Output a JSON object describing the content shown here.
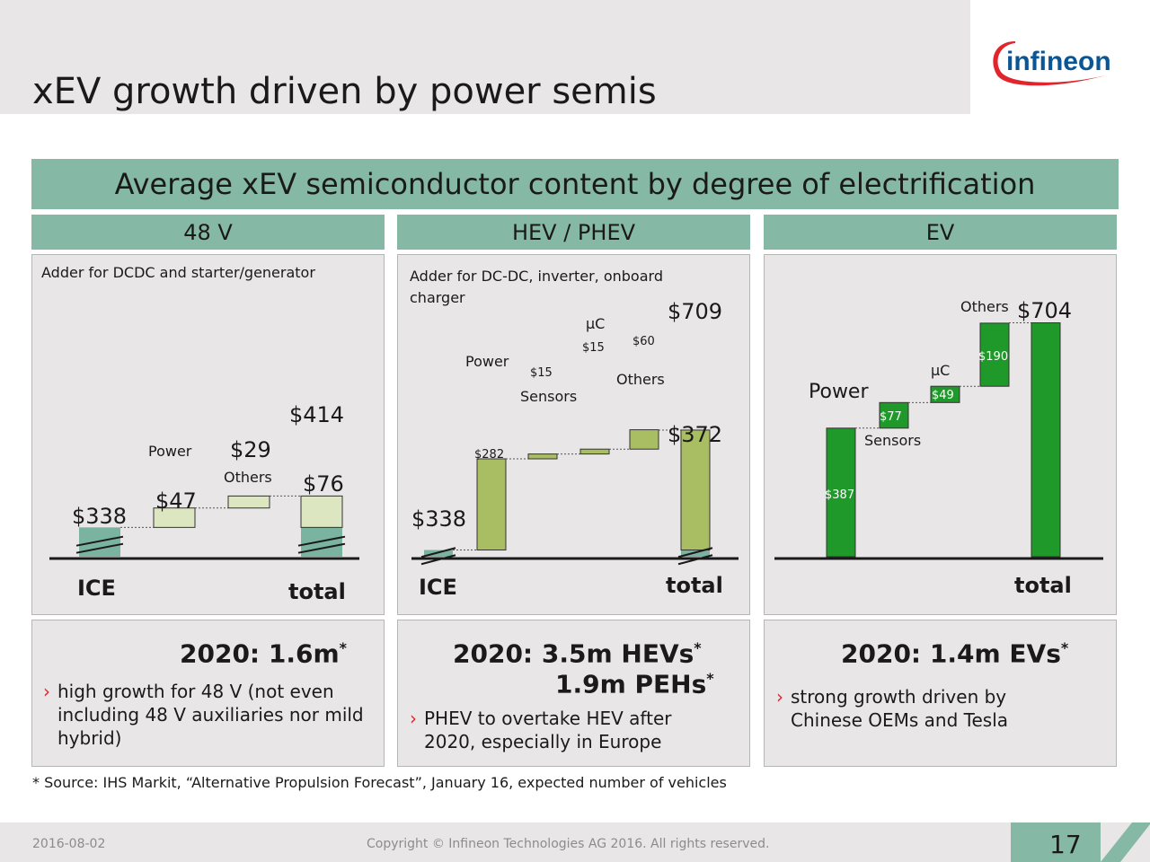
{
  "slide": {
    "title": "xEV growth driven by power semis",
    "logo_text": "infineon",
    "banner": "Average xEV semiconductor content by degree of electrification",
    "footnote": "* Source: IHS Markit, “Alternative Propulsion Forecast”, January 16, expected number of vehicles",
    "date": "2016-08-02",
    "copyright": "Copyright © Infineon Technologies AG 2016. All rights reserved.",
    "page_number": "17"
  },
  "colors": {
    "teal": "#85b8a5",
    "light_green": "#dce6c0",
    "olive_green": "#a9bd63",
    "bright_green": "#1f9a2a",
    "ice_block": "#7ab3a0",
    "bullet_arrow": "#e2242c",
    "logo_red": "#e2242c",
    "logo_blue": "#0a5596"
  },
  "chart_data": [
    {
      "type": "bar",
      "subtype": "waterfall",
      "panel_header": "48 V",
      "note": "Adder for DCDC and starter/generator",
      "x_labels": {
        "start": "ICE",
        "end": "total"
      },
      "steps": [
        {
          "label": "",
          "value": 338,
          "kind": "base",
          "value_label": "$338"
        },
        {
          "label": "Power",
          "value": 47,
          "kind": "increase",
          "value_label": "$47"
        },
        {
          "label": "Others",
          "value": 29,
          "kind": "increase",
          "value_label": "$29"
        },
        {
          "label": "",
          "value": 414,
          "kind": "total",
          "value_label": "$414",
          "increment_label": "$76"
        }
      ],
      "summary": "2020: 1.6m",
      "summary_mark": "*",
      "bullets": [
        "high growth for 48 V (not even including 48 V auxiliaries nor mild hybrid)"
      ]
    },
    {
      "type": "bar",
      "subtype": "waterfall",
      "panel_header": "HEV / PHEV",
      "note": "Adder for DC-DC, inverter, onboard charger",
      "x_labels": {
        "start": "ICE",
        "end": "total"
      },
      "steps": [
        {
          "label": "",
          "value": 338,
          "kind": "base",
          "value_label": "$338"
        },
        {
          "label": "Power",
          "value": 282,
          "kind": "increase",
          "value_label": "$282"
        },
        {
          "label": "Sensors",
          "value": 15,
          "kind": "increase",
          "value_label": "$15"
        },
        {
          "label": "µC",
          "value": 15,
          "kind": "increase",
          "value_label": "$15"
        },
        {
          "label": "Others",
          "value": 60,
          "kind": "increase",
          "value_label": "$60"
        },
        {
          "label": "",
          "value": 709,
          "kind": "total",
          "value_label": "$709",
          "increment_label": "$372"
        }
      ],
      "summary_lines": [
        "2020:  3.5m HEVs",
        "1.9m PEHs"
      ],
      "summary_mark": "*",
      "bullets": [
        "PHEV to overtake HEV after 2020, especially in Europe"
      ]
    },
    {
      "type": "bar",
      "subtype": "waterfall",
      "panel_header": "EV",
      "note": "",
      "x_labels": {
        "start": "",
        "end": "total"
      },
      "steps": [
        {
          "label": "Power",
          "value": 387,
          "kind": "increase",
          "value_label": "$387"
        },
        {
          "label": "Sensors",
          "value": 77,
          "kind": "increase",
          "value_label": "$77"
        },
        {
          "label": "µC",
          "value": 49,
          "kind": "increase",
          "value_label": "$49"
        },
        {
          "label": "Others",
          "value": 190,
          "kind": "increase",
          "value_label": "$190"
        },
        {
          "label": "",
          "value": 704,
          "kind": "total",
          "value_label": "$704"
        }
      ],
      "summary": "2020:  1.4m EVs",
      "summary_mark": "*",
      "bullets": [
        "strong growth driven by Chinese OEMs and Tesla"
      ]
    }
  ]
}
